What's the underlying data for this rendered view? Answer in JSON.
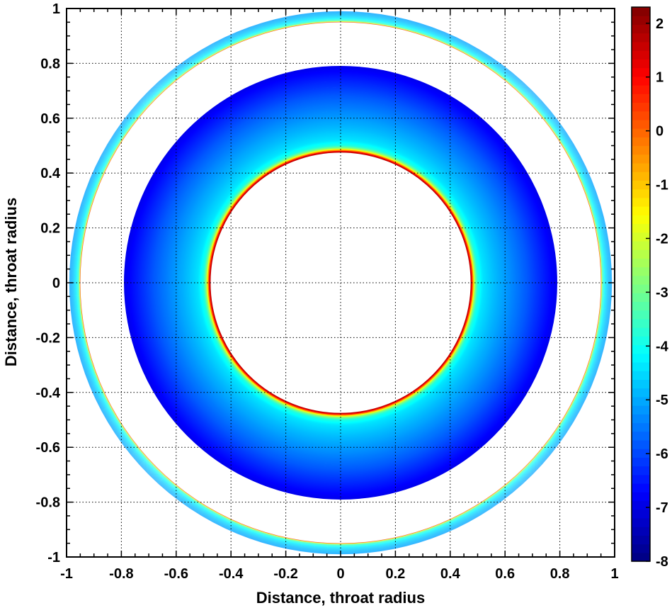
{
  "chart_data": {
    "type": "heatmap",
    "title": "",
    "xlabel": "Distance,  throat radius",
    "ylabel": "Distance,  throat radius",
    "xlim": [
      -1,
      1
    ],
    "ylim": [
      -1,
      1
    ],
    "x_ticks": [
      -1,
      -0.8,
      -0.6,
      -0.4,
      -0.2,
      0,
      0.2,
      0.4,
      0.6,
      0.8,
      1
    ],
    "y_ticks": [
      1,
      0.8,
      0.6,
      0.4,
      0.2,
      0,
      -0.2,
      -0.4,
      -0.6,
      -0.8,
      -1
    ],
    "x_tick_labels": [
      "-1",
      "-0.8",
      "-0.6",
      "-0.4",
      "-0.2",
      "0",
      "0.2",
      "0.4",
      "0.6",
      "0.8",
      "1"
    ],
    "y_tick_labels": [
      "1",
      "0.8",
      "0.6",
      "0.4",
      "0.2",
      "0",
      "-0.2",
      "-0.4",
      "-0.6",
      "-0.8",
      "-1"
    ],
    "grid": true,
    "grid_style": "dotted",
    "colormap": "jet",
    "colorbar": {
      "position": "right",
      "range": [
        -8,
        2.3
      ],
      "ticks": [
        2,
        1,
        0,
        -1,
        -2,
        -3,
        -4,
        -5,
        -6,
        -7,
        -8
      ],
      "tick_labels": [
        "2",
        "1",
        "0",
        "-1",
        "-2",
        "-3",
        "-4",
        "-5",
        "-6",
        "-7",
        "-8"
      ]
    },
    "annuli": [
      {
        "name": "outer ring",
        "r_inner": 0.95,
        "r_outer": 0.99,
        "profile": [
          [
            0.95,
            2.0
          ],
          [
            0.952,
            -1.5
          ],
          [
            0.956,
            -3.5
          ],
          [
            0.965,
            -4.3
          ],
          [
            0.978,
            -4.8
          ],
          [
            0.99,
            -5.1
          ]
        ]
      },
      {
        "name": "inner annulus",
        "r_inner": 0.475,
        "r_outer": 0.79,
        "profile": [
          [
            0.475,
            2.0
          ],
          [
            0.48,
            1.0
          ],
          [
            0.485,
            -1.0
          ],
          [
            0.49,
            -2.5
          ],
          [
            0.5,
            -3.8
          ],
          [
            0.52,
            -4.4
          ],
          [
            0.56,
            -4.8
          ],
          [
            0.62,
            -5.3
          ],
          [
            0.68,
            -5.8
          ],
          [
            0.74,
            -6.4
          ],
          [
            0.79,
            -6.9
          ]
        ]
      }
    ]
  }
}
